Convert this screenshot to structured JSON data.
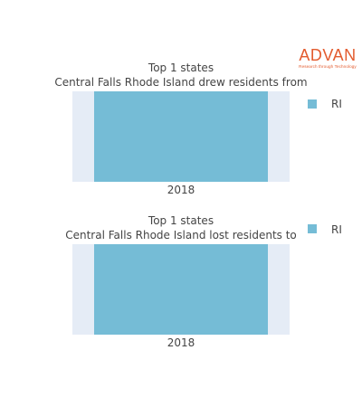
{
  "brand": {
    "name": "ADVAN",
    "tagline": "Research through Technology",
    "color": "#e35b2e"
  },
  "colors": {
    "plot_bg": "#e5ecf6",
    "text": "#444444"
  },
  "chart_data": [
    {
      "type": "bar",
      "title": "Top 1 states",
      "subtitle": "Central Falls Rhode Island drew residents from",
      "categories": [
        "2018"
      ],
      "series": [
        {
          "name": "RI",
          "values": [
            1
          ],
          "color": "#75bcd6"
        }
      ],
      "ylim": [
        0,
        1
      ],
      "grid": false,
      "legend": "top-right"
    },
    {
      "type": "bar",
      "title": "Top 1 states",
      "subtitle": "Central Falls Rhode Island lost residents to",
      "categories": [
        "2018"
      ],
      "series": [
        {
          "name": "RI",
          "values": [
            1
          ],
          "color": "#75bcd6"
        }
      ],
      "ylim": [
        0,
        1
      ],
      "grid": false,
      "legend": "top-right"
    }
  ]
}
